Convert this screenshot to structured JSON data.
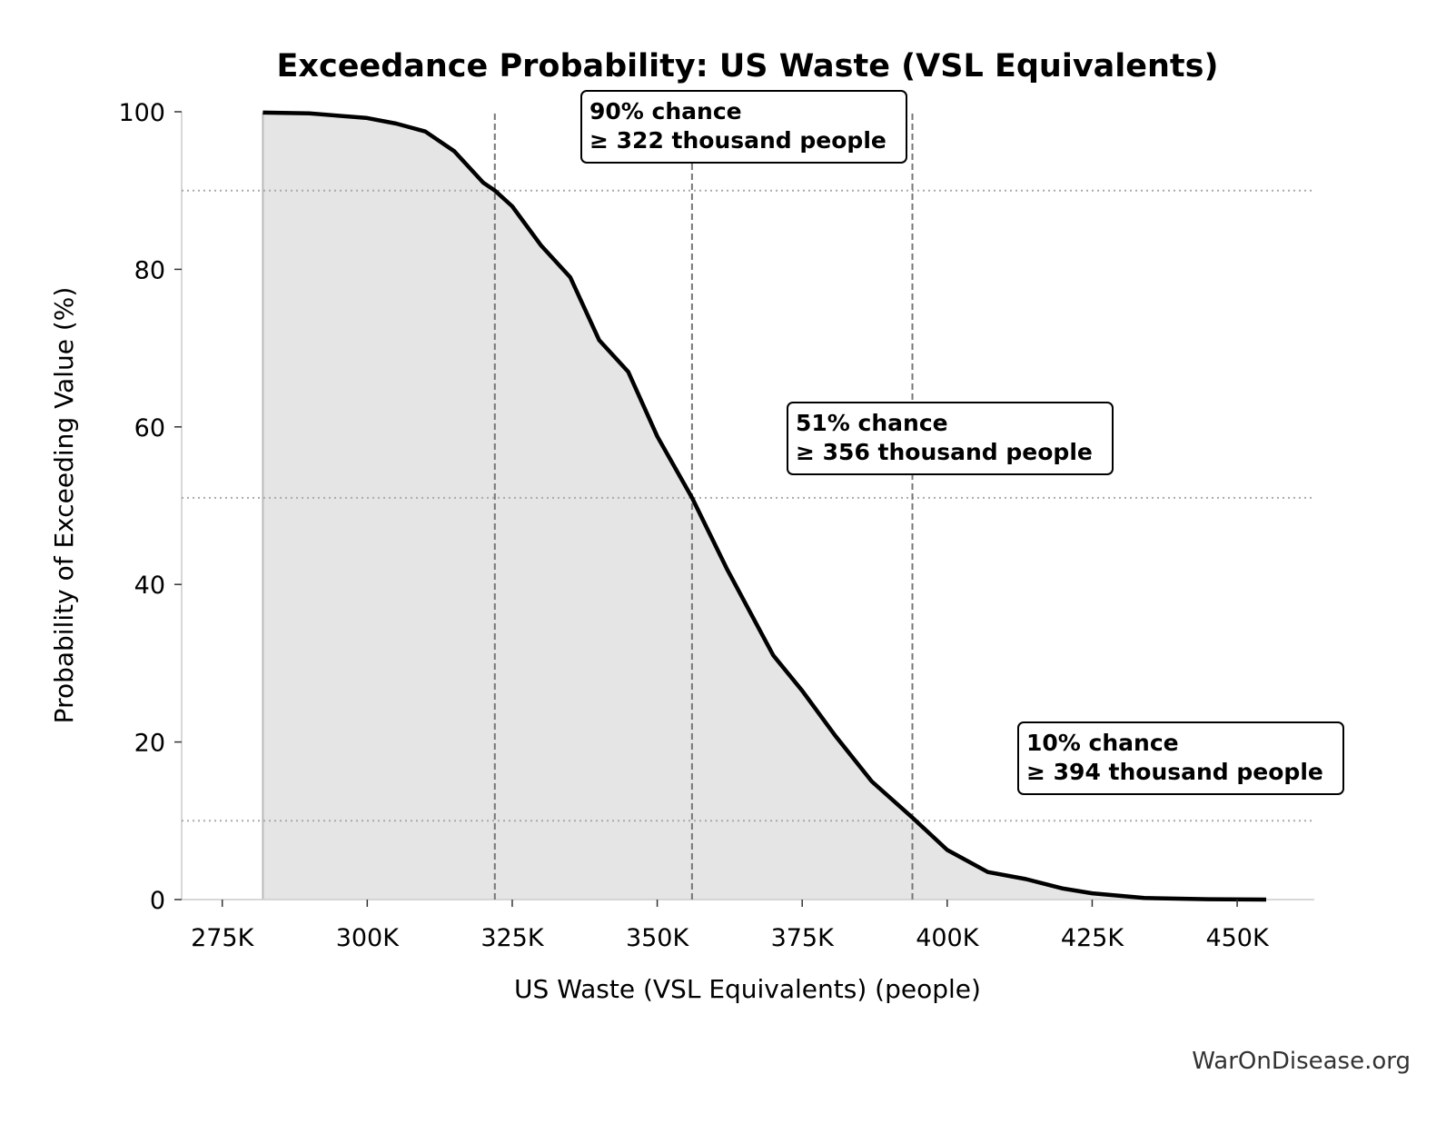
{
  "chart_data": {
    "type": "line",
    "title": "Exceedance Probability: US Waste (VSL Equivalents)",
    "x_label": "US Waste (VSL Equivalents) (people)",
    "y_label": "Probability of Exceeding Value (%)",
    "source": "WarOnDisease.org",
    "series": [
      {
        "color": "#000000",
        "fill": "#e5e5e5",
        "x": [
          282000,
          290000,
          300000,
          305000,
          310000,
          315000,
          320000,
          322000,
          325000,
          330000,
          335000,
          340000,
          345000,
          350000,
          356000,
          362000,
          370000,
          375000,
          380700,
          387000,
          394000,
          400000,
          407000,
          413600,
          420000,
          425000,
          434000,
          445000,
          455000
        ],
        "values": [
          99.9,
          99.8,
          99.2,
          98.5,
          97.5,
          95,
          91,
          90,
          88,
          83,
          79,
          71,
          67,
          58.8,
          51,
          42,
          31,
          26.5,
          20.8,
          15,
          10.4,
          6.3,
          3.5,
          2.6,
          1.4,
          0.8,
          0.2,
          0.05,
          0
        ]
      }
    ],
    "annotations": [
      {
        "x": 322000,
        "probability": 90,
        "line_1": "90% chance",
        "line_2": "≥ 322 thousand people"
      },
      {
        "x": 356000,
        "probability": 51,
        "line_1": "51% chance",
        "line_2": "≥ 356 thousand people"
      },
      {
        "x": 394000,
        "probability": 10,
        "line_1": "10% chance",
        "line_2": "≥ 394 thousand people"
      }
    ],
    "xlim": [
      268000,
      463300
    ],
    "ylim": [
      0,
      100
    ],
    "xticks": [
      {
        "value": 275000,
        "label": "275K"
      },
      {
        "value": 300000,
        "label": "300K"
      },
      {
        "value": 325000,
        "label": "325K"
      },
      {
        "value": 350000,
        "label": "350K"
      },
      {
        "value": 375000,
        "label": "375K"
      },
      {
        "value": 400000,
        "label": "400K"
      },
      {
        "value": 425000,
        "label": "425K"
      },
      {
        "value": 450000,
        "label": "450K"
      }
    ],
    "yticks": [
      0,
      20,
      40,
      60,
      80,
      100
    ]
  }
}
